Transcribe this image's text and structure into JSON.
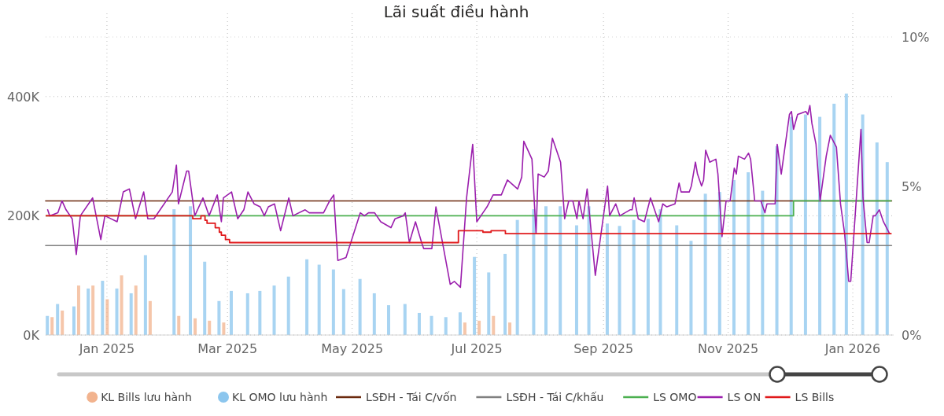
{
  "chart_data": {
    "type": "bar",
    "title": "Lãi suất điều hành",
    "xlim": [
      "2024-12-02",
      "2026-01-21"
    ],
    "xticks": [
      {
        "value": "2025-01-01",
        "label": "Jan 2025"
      },
      {
        "value": "2025-03-01",
        "label": "Mar 2025"
      },
      {
        "value": "2025-05-01",
        "label": "May 2025"
      },
      {
        "value": "2025-07-01",
        "label": "Jul 2025"
      },
      {
        "value": "2025-09-01",
        "label": "Sep 2025"
      },
      {
        "value": "2025-11-01",
        "label": "Nov 2025"
      },
      {
        "value": "2026-01-01",
        "label": "Jan 2026"
      }
    ],
    "ylim": [
      0,
      500000
    ],
    "yticks": [
      {
        "value": 0,
        "label": "0K"
      },
      {
        "value": 200000,
        "label": "200K"
      },
      {
        "value": 400000,
        "label": "400K"
      }
    ],
    "y2lim": [
      0,
      10
    ],
    "y2ticks": [
      {
        "value": 0,
        "label": "0%"
      },
      {
        "value": 5,
        "label": "5%"
      },
      {
        "value": 10,
        "label": "10%"
      }
    ],
    "grid": true,
    "legend": "bottom",
    "series": [
      {
        "name": "KL Bills lưu hành",
        "color": "#f2b38e",
        "x": [
          "2024-12-04",
          "2024-12-09",
          "2024-12-17",
          "2024-12-24",
          "2024-12-31",
          "2025-01-07",
          "2025-01-14",
          "2025-01-21",
          "2025-02-04",
          "2025-02-12",
          "2025-02-19",
          "2025-02-26",
          "2025-06-24",
          "2025-07-01",
          "2025-07-08",
          "2025-07-16"
        ],
        "values": [
          30000,
          41000,
          83000,
          83000,
          60000,
          100000,
          83000,
          57000,
          32000,
          28000,
          24000,
          21000,
          21000,
          24000,
          32000,
          21000
        ]
      },
      {
        "name": "KL OMO lưu hành",
        "color": "#8cc6ee",
        "x": [
          "2024-12-04",
          "2024-12-09",
          "2024-12-17",
          "2024-12-24",
          "2024-12-31",
          "2025-01-07",
          "2025-01-14",
          "2025-01-21",
          "2025-02-04",
          "2025-02-12",
          "2025-02-19",
          "2025-02-26",
          "2025-03-04",
          "2025-03-12",
          "2025-03-18",
          "2025-03-25",
          "2025-04-01",
          "2025-04-10",
          "2025-04-16",
          "2025-04-23",
          "2025-04-28",
          "2025-05-06",
          "2025-05-13",
          "2025-05-20",
          "2025-05-28",
          "2025-06-04",
          "2025-06-10",
          "2025-06-17",
          "2025-06-24",
          "2025-07-01",
          "2025-07-08",
          "2025-07-16",
          "2025-07-22",
          "2025-07-30",
          "2025-08-05",
          "2025-08-12",
          "2025-08-20",
          "2025-08-26",
          "2025-09-04",
          "2025-09-10",
          "2025-09-17",
          "2025-09-24",
          "2025-09-30",
          "2025-10-08",
          "2025-10-15",
          "2025-10-22",
          "2025-10-29",
          "2025-11-05",
          "2025-11-12",
          "2025-11-19",
          "2025-11-26",
          "2025-12-03",
          "2025-12-10",
          "2025-12-17",
          "2025-12-24",
          "2025-12-30",
          "2026-01-07",
          "2026-01-14",
          "2026-01-19"
        ],
        "values": [
          32000,
          52000,
          48000,
          78000,
          91000,
          78000,
          70000,
          134000,
          211000,
          216000,
          123000,
          57000,
          74000,
          70000,
          74000,
          83000,
          98000,
          127000,
          118000,
          110000,
          77000,
          94000,
          70000,
          50000,
          52000,
          37000,
          32000,
          30000,
          38000,
          131000,
          105000,
          136000,
          193000,
          211000,
          216000,
          216000,
          184000,
          216000,
          187000,
          183000,
          193000,
          195000,
          211000,
          184000,
          158000,
          237000,
          240000,
          260000,
          273000,
          242000,
          317000,
          366000,
          370000,
          366000,
          388000,
          405000,
          370000,
          323000,
          290000
        ]
      },
      {
        "name": "LSĐH - Tái C/vốn",
        "type": "line",
        "axis": "y2",
        "color": "#6b2a0e",
        "x": [
          "2024-12-02",
          "2026-01-20"
        ],
        "values": [
          4.5,
          4.5
        ]
      },
      {
        "name": "LSĐH - Tái C/khấu",
        "type": "line",
        "axis": "y2",
        "color": "#808080",
        "x": [
          "2024-12-02",
          "2026-01-20"
        ],
        "values": [
          3,
          3
        ]
      },
      {
        "name": "LS OMO",
        "type": "step",
        "axis": "y2",
        "color": "#4cb050",
        "x": [
          "2024-12-02",
          "2025-12-03",
          "2026-01-20"
        ],
        "values": [
          4,
          4.5,
          4.5
        ]
      },
      {
        "name": "LS ON",
        "type": "line",
        "axis": "y2",
        "color": "#9b1fad",
        "x": [
          "2024-12-03",
          "2024-12-04",
          "2024-12-08",
          "2024-12-10",
          "2024-12-12",
          "2024-12-15",
          "2024-12-17",
          "2024-12-19",
          "2024-12-23",
          "2024-12-25",
          "2024-12-27",
          "2024-12-29",
          "2024-12-31",
          "2025-01-06",
          "2025-01-09",
          "2025-01-12",
          "2025-01-15",
          "2025-01-19",
          "2025-01-21",
          "2025-01-24",
          "2025-02-02",
          "2025-02-04",
          "2025-02-05",
          "2025-02-09",
          "2025-02-10",
          "2025-02-13",
          "2025-02-17",
          "2025-02-20",
          "2025-02-24",
          "2025-02-26",
          "2025-02-27",
          "2025-03-03",
          "2025-03-06",
          "2025-03-09",
          "2025-03-11",
          "2025-03-14",
          "2025-03-17",
          "2025-03-19",
          "2025-03-21",
          "2025-03-24",
          "2025-03-27",
          "2025-03-31",
          "2025-04-02",
          "2025-04-08",
          "2025-04-10",
          "2025-04-13",
          "2025-04-17",
          "2025-04-20",
          "2025-04-22",
          "2025-04-24",
          "2025-04-28",
          "2025-05-05",
          "2025-05-07",
          "2025-05-09",
          "2025-05-12",
          "2025-05-15",
          "2025-05-20",
          "2025-05-22",
          "2025-05-26",
          "2025-05-27",
          "2025-05-29",
          "2025-06-01",
          "2025-06-04",
          "2025-06-05",
          "2025-06-09",
          "2025-06-11",
          "2025-06-18",
          "2025-06-20",
          "2025-06-23",
          "2025-06-26",
          "2025-06-29",
          "2025-07-01",
          "2025-07-04",
          "2025-07-06",
          "2025-07-09",
          "2025-07-13",
          "2025-07-16",
          "2025-07-21",
          "2025-07-23",
          "2025-07-24",
          "2025-07-28",
          "2025-07-30",
          "2025-07-31",
          "2025-08-03",
          "2025-08-05",
          "2025-08-07",
          "2025-08-11",
          "2025-08-13",
          "2025-08-15",
          "2025-08-17",
          "2025-08-19",
          "2025-08-20",
          "2025-08-22",
          "2025-08-24",
          "2025-08-28",
          "2025-09-03",
          "2025-09-04",
          "2025-09-07",
          "2025-09-09",
          "2025-09-14",
          "2025-09-15",
          "2025-09-16",
          "2025-09-18",
          "2025-09-21",
          "2025-09-24",
          "2025-09-28",
          "2025-09-30",
          "2025-10-02",
          "2025-10-06",
          "2025-10-08",
          "2025-10-09",
          "2025-10-13",
          "2025-10-14",
          "2025-10-16",
          "2025-10-17",
          "2025-10-19",
          "2025-10-20",
          "2025-10-21",
          "2025-10-23",
          "2025-10-26",
          "2025-10-27",
          "2025-10-29",
          "2025-10-31",
          "2025-11-02",
          "2025-11-04",
          "2025-11-05",
          "2025-11-06",
          "2025-11-09",
          "2025-11-11",
          "2025-11-12",
          "2025-11-14",
          "2025-11-17",
          "2025-11-19",
          "2025-11-20",
          "2025-11-24",
          "2025-11-25",
          "2025-11-27",
          "2025-12-01",
          "2025-12-02",
          "2025-12-03",
          "2025-12-05",
          "2025-12-09",
          "2025-12-10",
          "2025-12-11",
          "2025-12-12",
          "2025-12-14",
          "2025-12-16",
          "2025-12-19",
          "2025-12-21",
          "2025-12-24",
          "2025-12-26",
          "2025-12-28",
          "2025-12-30",
          "2025-12-31",
          "2026-01-05",
          "2026-01-06",
          "2026-01-08",
          "2026-01-09",
          "2026-01-11",
          "2026-01-12",
          "2026-01-14",
          "2026-01-16",
          "2026-01-19"
        ],
        "values": [
          4.2,
          4.0,
          4.1,
          4.5,
          4.2,
          3.9,
          2.7,
          4.0,
          4.4,
          4.6,
          3.9,
          3.2,
          4.0,
          3.8,
          4.8,
          4.9,
          3.9,
          4.8,
          3.9,
          3.9,
          4.8,
          5.7,
          4.4,
          5.5,
          5.5,
          4.0,
          4.6,
          4.0,
          4.7,
          3.8,
          4.6,
          4.8,
          3.9,
          4.2,
          4.8,
          4.4,
          4.3,
          4.0,
          4.3,
          4.4,
          3.5,
          4.6,
          4.0,
          4.2,
          4.1,
          4.1,
          4.1,
          4.5,
          4.7,
          2.5,
          2.6,
          4.1,
          4.0,
          4.1,
          4.1,
          3.8,
          3.6,
          3.9,
          4.0,
          4.1,
          3.1,
          3.8,
          3.1,
          2.9,
          2.9,
          4.3,
          1.7,
          1.8,
          1.6,
          4.6,
          6.4,
          3.8,
          4.1,
          4.3,
          4.7,
          4.7,
          5.2,
          4.9,
          5.3,
          6.5,
          5.9,
          3.4,
          5.4,
          5.3,
          5.5,
          6.6,
          5.8,
          3.9,
          4.5,
          4.5,
          3.9,
          4.5,
          3.9,
          4.9,
          2.0,
          5.0,
          4.0,
          4.4,
          4.0,
          4.2,
          4.2,
          4.6,
          3.9,
          3.8,
          4.6,
          3.8,
          4.4,
          4.3,
          4.4,
          5.1,
          4.8,
          4.8,
          5.0,
          5.8,
          5.4,
          5.0,
          5.2,
          6.2,
          5.8,
          5.9,
          5.4,
          3.3,
          4.5,
          4.5,
          5.6,
          5.4,
          6.0,
          5.9,
          6.1,
          5.9,
          4.5,
          4.5,
          4.1,
          4.4,
          4.4,
          6.4,
          5.4,
          7.4,
          7.5,
          6.9,
          7.4,
          7.5,
          7.4,
          7.7,
          7.1,
          6.4,
          4.5,
          6.0,
          6.7,
          6.3,
          4.4,
          3.4,
          1.8,
          1.8,
          6.9,
          4.6,
          3.1,
          3.1,
          4.0,
          4.0,
          4.2,
          3.8,
          3.4
        ]
      },
      {
        "name": "LS Bills",
        "type": "step",
        "axis": "y2",
        "color": "#e0191b",
        "x": [
          "2024-12-02",
          "2025-02-12",
          "2025-02-16",
          "2025-02-18",
          "2025-02-19",
          "2025-02-23",
          "2025-02-25",
          "2025-02-26",
          "2025-02-28",
          "2025-03-02",
          "2025-06-22",
          "2025-07-04",
          "2025-07-08",
          "2025-07-15",
          "2026-01-20"
        ],
        "values": [
          4.0,
          3.9,
          4.0,
          3.85,
          3.75,
          3.6,
          3.45,
          3.35,
          3.2,
          3.1,
          3.5,
          3.45,
          3.5,
          3.4,
          3.4
        ]
      }
    ]
  }
}
